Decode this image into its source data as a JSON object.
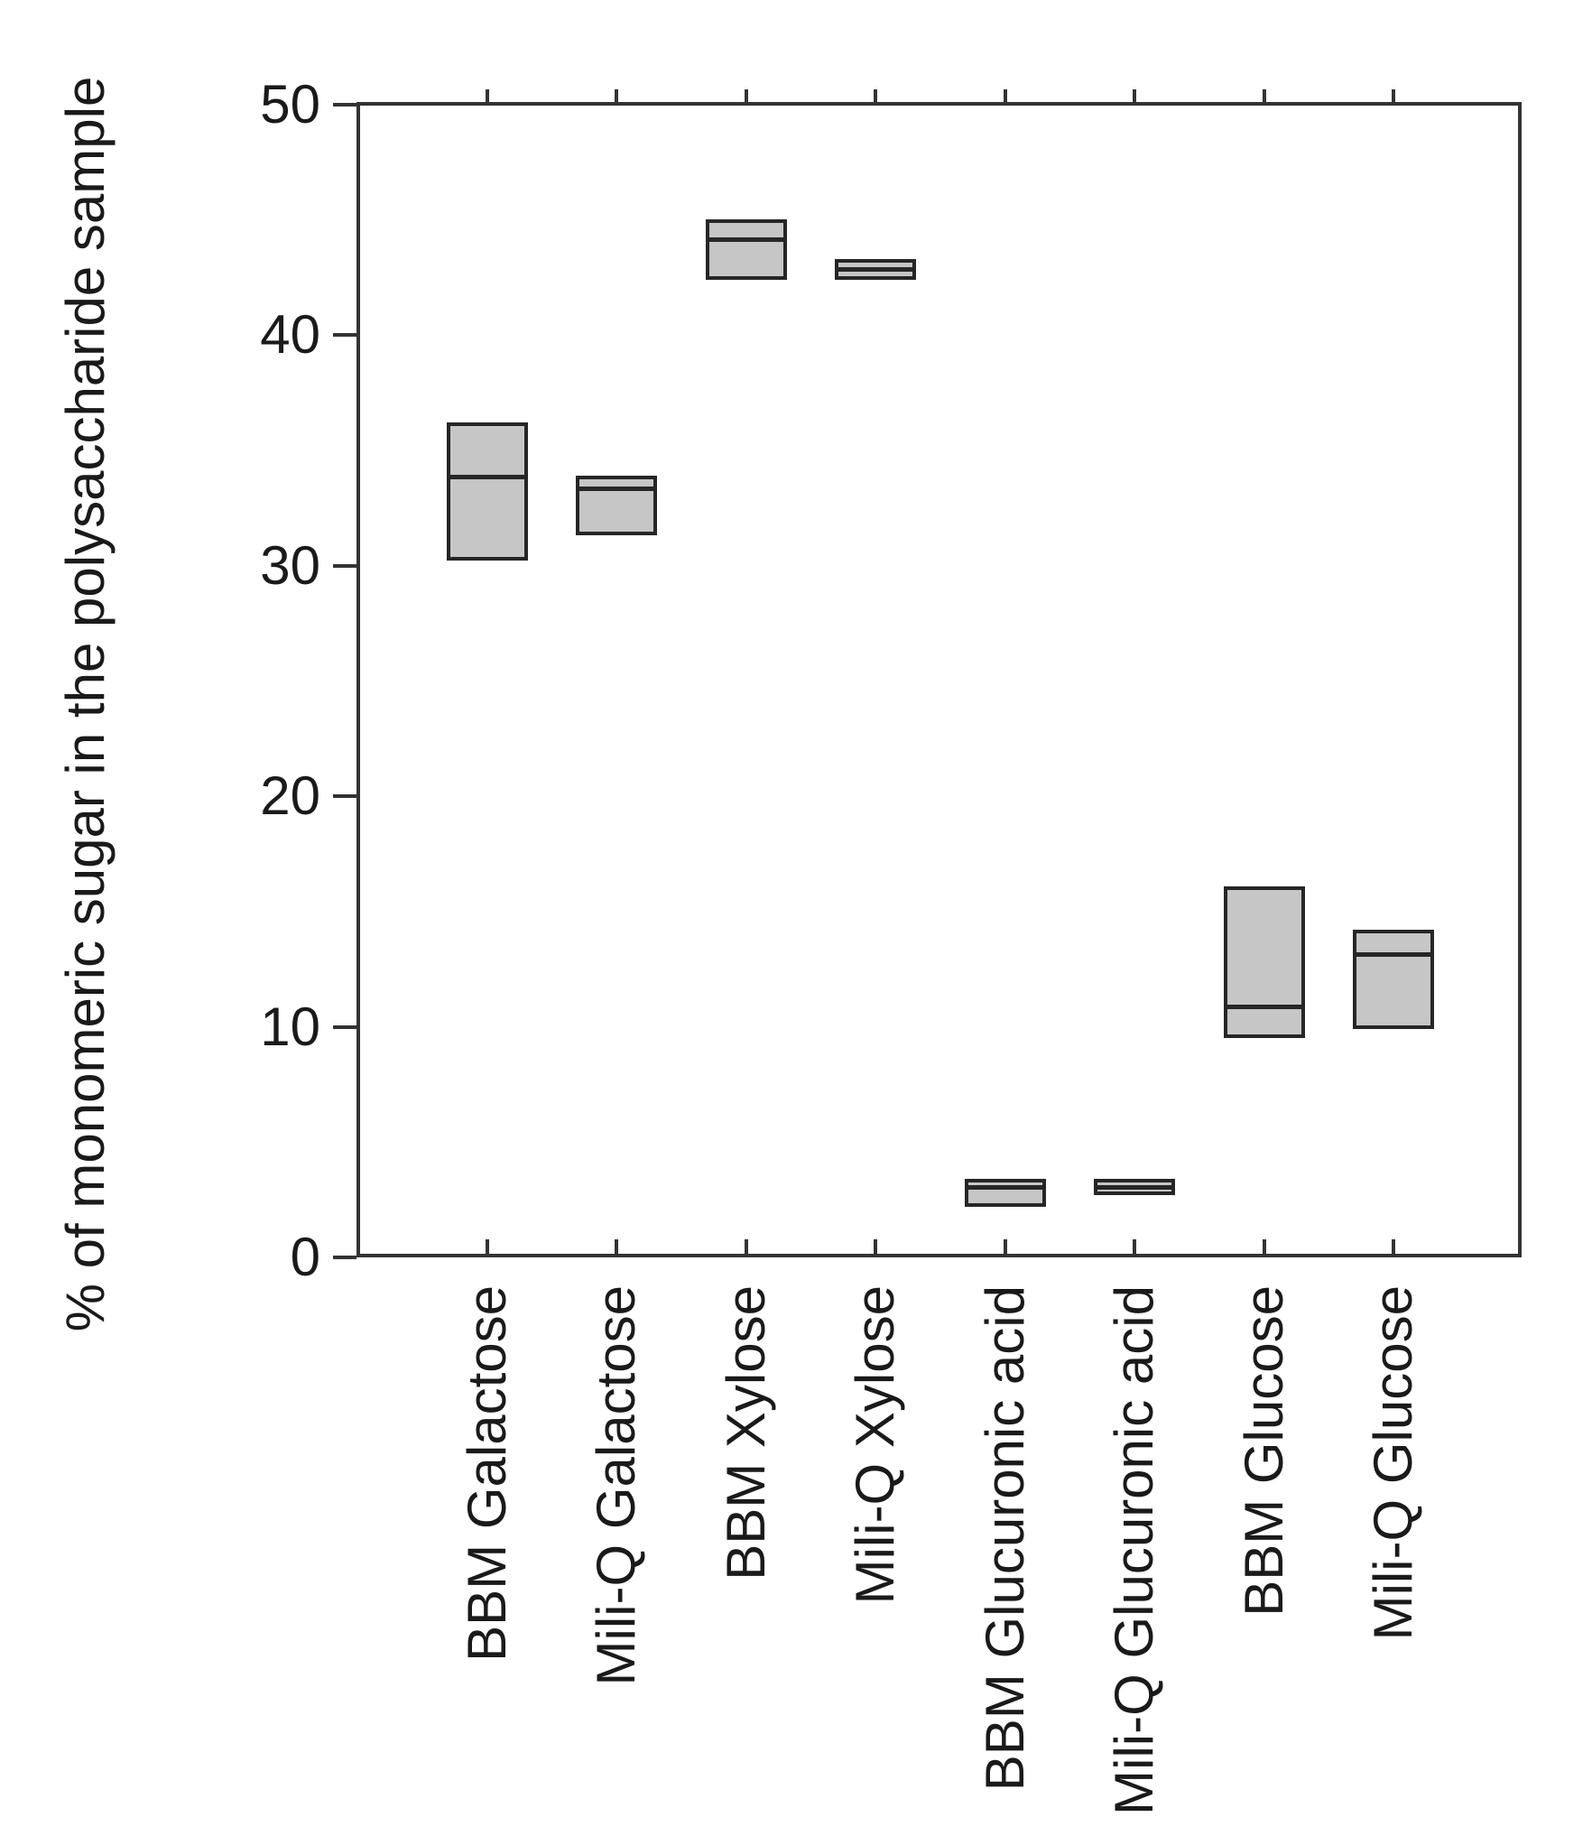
{
  "chart_data": {
    "type": "box",
    "title": "",
    "xlabel": "",
    "ylabel": "% of monomeric sugar in the polysaccharide sample",
    "ylim": [
      0,
      50
    ],
    "y_ticks": [
      0,
      10,
      20,
      30,
      40,
      50
    ],
    "grid": false,
    "legend": false,
    "whiskers": false,
    "categories": [
      "BBM Galactose",
      "Mili-Q Galactose",
      "BBM Xylose",
      "Mili-Q Xylose",
      "BBM Glucuronic acid",
      "Mili-Q Glucuronic acid",
      "BBM Glucose",
      "Mili-Q Glucose"
    ],
    "series": [
      {
        "category": "BBM Galactose",
        "q1": 30.2,
        "median": 34.0,
        "q3": 36.2
      },
      {
        "category": "Mili-Q Galactose",
        "q1": 31.3,
        "median": 33.5,
        "q3": 33.9
      },
      {
        "category": "BBM Xylose",
        "q1": 42.4,
        "median": 44.3,
        "q3": 45.0
      },
      {
        "category": "Mili-Q Xylose",
        "q1": 42.4,
        "median": 43.0,
        "q3": 43.3
      },
      {
        "category": "BBM Glucuronic acid",
        "q1": 2.2,
        "median": 3.2,
        "q3": 3.4
      },
      {
        "category": "Mili-Q Glucuronic acid",
        "q1": 2.7,
        "median": 3.2,
        "q3": 3.4
      },
      {
        "category": "BBM Glucose",
        "q1": 9.5,
        "median": 11.0,
        "q3": 16.1
      },
      {
        "category": "Mili-Q Glucose",
        "q1": 9.9,
        "median": 13.3,
        "q3": 14.2
      }
    ],
    "style": {
      "background": "#ffffff",
      "box_fill": "#c6c6c6",
      "box_stroke": "#262626",
      "axis_color": "#333333",
      "text_color": "#1a1a1a"
    }
  }
}
